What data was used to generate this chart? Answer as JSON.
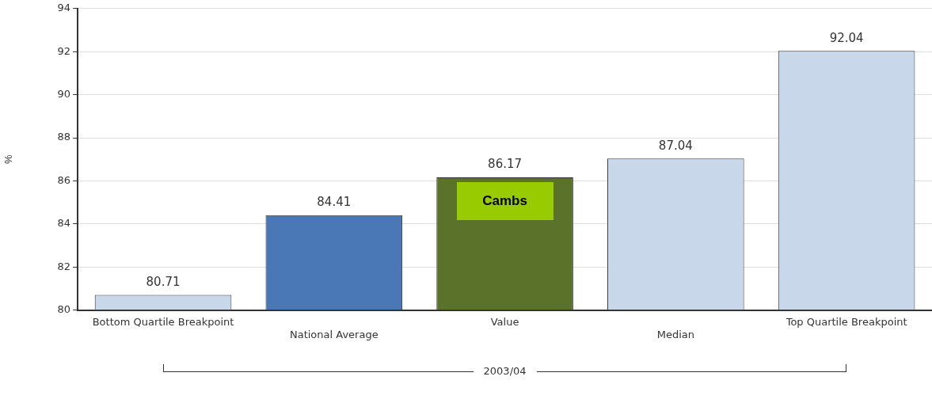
{
  "chart_data": {
    "type": "bar",
    "ylabel": "%",
    "categories": [
      "Bottom Quartile Breakpoint",
      "National Average",
      "Value",
      "Median",
      "Top Quartile Breakpoint"
    ],
    "values": [
      80.71,
      84.41,
      86.17,
      87.04,
      92.04
    ],
    "colors": [
      "#c9d7ea",
      "#4a78b6",
      "#5a7229",
      "#c9d7ea",
      "#c9d7ea"
    ],
    "ylim": [
      80,
      94
    ],
    "yticks": [
      80,
      82,
      84,
      86,
      88,
      90,
      92,
      94
    ],
    "grid": "y",
    "data_labels": true,
    "annotations": [
      "Cambs",
      "2003/04"
    ]
  }
}
